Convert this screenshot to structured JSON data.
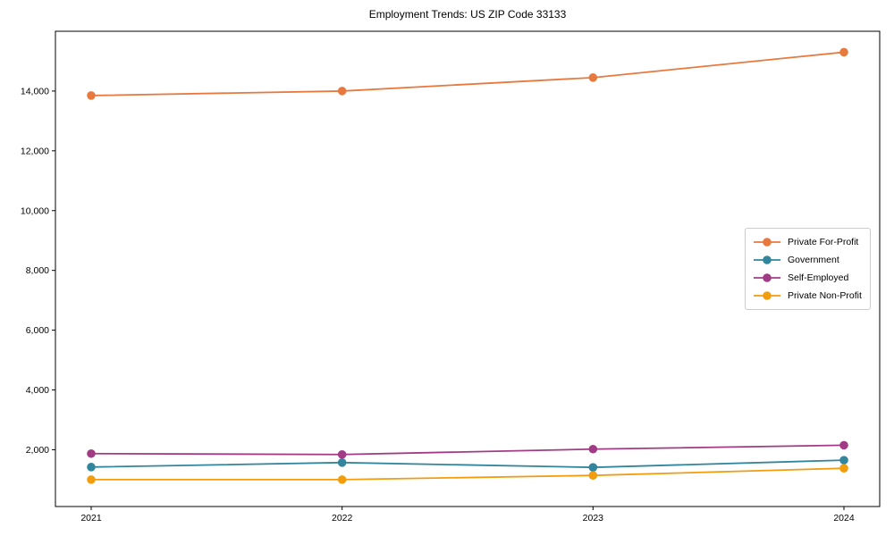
{
  "chart_data": {
    "type": "line",
    "title": "Employment Trends: US ZIP Code 33133",
    "x": [
      "2021",
      "2022",
      "2023",
      "2024"
    ],
    "series": [
      {
        "name": "Private For-Profit",
        "color": "#e8793e",
        "values": [
          13850,
          14000,
          14450,
          15300
        ]
      },
      {
        "name": "Government",
        "color": "#31869e",
        "values": [
          1420,
          1570,
          1410,
          1650
        ]
      },
      {
        "name": "Self-Employed",
        "color": "#a23b85",
        "values": [
          1870,
          1840,
          2020,
          2150
        ]
      },
      {
        "name": "Private Non-Profit",
        "color": "#f29d0e",
        "values": [
          1000,
          1000,
          1140,
          1380
        ]
      }
    ],
    "xlabel": "",
    "ylabel": "",
    "ylim": [
      100,
      16000
    ],
    "yticks": [
      2000,
      4000,
      6000,
      8000,
      10000,
      12000,
      14000
    ],
    "grid": false,
    "legend_position": "center-right",
    "axis_color": "#000000",
    "background": "#ffffff"
  }
}
